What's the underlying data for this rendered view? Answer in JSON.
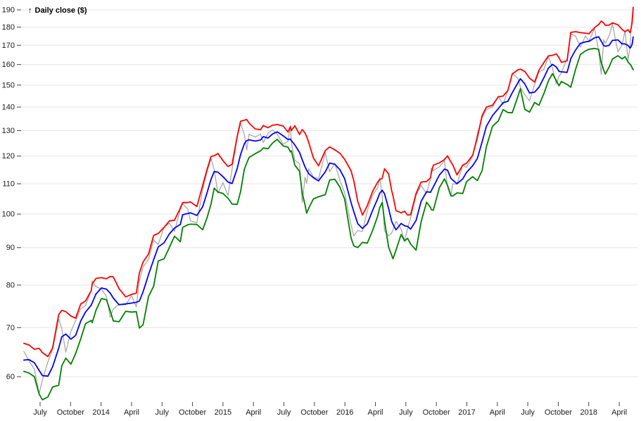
{
  "y_axis": {
    "arrow": "↑",
    "title": "Daily close ($)",
    "scale": "log",
    "ticks": [
      60,
      70,
      80,
      90,
      100,
      110,
      120,
      130,
      140,
      150,
      160,
      170,
      180,
      190
    ]
  },
  "x_axis": {
    "ticks": [
      {
        "t": 2,
        "label": "July"
      },
      {
        "t": 5,
        "label": "October"
      },
      {
        "t": 8,
        "label": "2014"
      },
      {
        "t": 11,
        "label": "April"
      },
      {
        "t": 14,
        "label": "July"
      },
      {
        "t": 17,
        "label": "October"
      },
      {
        "t": 20,
        "label": "2015"
      },
      {
        "t": 23,
        "label": "April"
      },
      {
        "t": 26,
        "label": "July"
      },
      {
        "t": 29,
        "label": "October"
      },
      {
        "t": 32,
        "label": "2016"
      },
      {
        "t": 35,
        "label": "April"
      },
      {
        "t": 38,
        "label": "July"
      },
      {
        "t": 41,
        "label": "October"
      },
      {
        "t": 44,
        "label": "2017"
      },
      {
        "t": 47,
        "label": "April"
      },
      {
        "t": 50,
        "label": "July"
      },
      {
        "t": 53,
        "label": "October"
      },
      {
        "t": 56,
        "label": "2018"
      },
      {
        "t": 59,
        "label": "April"
      }
    ]
  },
  "chart_data": {
    "type": "line",
    "title": "Daily close ($)",
    "y_scale": "log",
    "y_domain": [
      56,
      192
    ],
    "y_tick_labels": [
      60,
      70,
      80,
      90,
      100,
      110,
      120,
      130,
      140,
      150,
      160,
      170,
      180,
      190
    ],
    "x_unit": "months since 2013-05-01; tick t=2 is July 2013, t=59 is April 2018",
    "x_tick_labels": [
      "July",
      "October",
      "2014",
      "April",
      "July",
      "October",
      "2015",
      "April",
      "July",
      "October",
      "2016",
      "April",
      "July",
      "October",
      "2017",
      "April",
      "July",
      "October",
      "2018",
      "April"
    ],
    "grid": true,
    "legend": "none",
    "series": [
      {
        "name": "daily-close",
        "col": 1,
        "color": "#a3a3a3",
        "width": 1.2,
        "z": 0
      },
      {
        "name": "bollinger-lower",
        "col": 4,
        "color": "#008000",
        "width": 1.8,
        "z": 1
      },
      {
        "name": "bollinger-middle",
        "col": 2,
        "color": "#0000ff",
        "width": 1.8,
        "z": 2
      },
      {
        "name": "bollinger-upper",
        "col": 3,
        "color": "#ff0000",
        "width": 1.8,
        "z": 3
      }
    ],
    "points_format": "[t, close, middle, upper, lower]",
    "points": [
      [
        0.4,
        64.96,
        63.2,
        66.6,
        61.0
      ],
      [
        0.9,
        63.1,
        63.3,
        66.3,
        60.7
      ],
      [
        1.43,
        61.4,
        62.7,
        65.4,
        60.0
      ],
      [
        1.9,
        56.9,
        61.2,
        65.6,
        56.8
      ],
      [
        2.23,
        59.4,
        60.2,
        64.7,
        55.8
      ],
      [
        2.77,
        62.9,
        60.1,
        63.9,
        56.3
      ],
      [
        3.23,
        65.3,
        61.9,
        65.7,
        58.1
      ],
      [
        3.83,
        71.9,
        65.6,
        72.9,
        58.4
      ],
      [
        4.13,
        69.8,
        68.0,
        73.9,
        62.1
      ],
      [
        4.53,
        64.8,
        68.6,
        73.6,
        63.6
      ],
      [
        5.03,
        69.2,
        67.5,
        72.6,
        62.4
      ],
      [
        5.5,
        71.5,
        68.3,
        72.1,
        64.5
      ],
      [
        6.0,
        74.3,
        71.5,
        75.4,
        67.6
      ],
      [
        6.47,
        75.0,
        73.5,
        76.1,
        70.9
      ],
      [
        7.03,
        78.6,
        75.1,
        78.6,
        71.6
      ],
      [
        7.13,
        81.1,
        75.7,
        80.3,
        71.1
      ],
      [
        7.5,
        79.6,
        77.8,
        81.7,
        73.9
      ],
      [
        8.03,
        79.0,
        79.3,
        81.9,
        76.7
      ],
      [
        8.53,
        77.2,
        79.0,
        81.6,
        76.4
      ],
      [
        8.9,
        72.3,
        78.0,
        82.2,
        73.8
      ],
      [
        9.2,
        74.2,
        76.8,
        82.1,
        71.5
      ],
      [
        9.77,
        75.3,
        75.2,
        79.1,
        71.3
      ],
      [
        10.43,
        75.2,
        75.4,
        77.1,
        73.7
      ],
      [
        11.0,
        77.4,
        75.6,
        77.7,
        73.5
      ],
      [
        11.47,
        74.7,
        75.8,
        78.0,
        73.6
      ],
      [
        11.77,
        81.1,
        76.1,
        83.1,
        69.9
      ],
      [
        12.13,
        84.7,
        78.3,
        86.0,
        70.6
      ],
      [
        12.67,
        86.7,
        82.7,
        88.2,
        77.2
      ],
      [
        13.17,
        92.2,
        86.6,
        93.5,
        79.7
      ],
      [
        13.63,
        90.9,
        90.2,
        94.1,
        86.3
      ],
      [
        14.2,
        95.97,
        91.4,
        95.9,
        86.9
      ],
      [
        14.73,
        97.2,
        94.0,
        97.9,
        90.1
      ],
      [
        15.23,
        94.7,
        95.7,
        98.1,
        93.3
      ],
      [
        15.8,
        101.5,
        96.8,
        101.9,
        91.7
      ],
      [
        16.03,
        103.3,
        99.8,
        103.7,
        95.9
      ],
      [
        16.53,
        101.6,
        100.2,
        103.7,
        96.7
      ],
      [
        16.8,
        97.87,
        100.4,
        103.9,
        96.9
      ],
      [
        17.43,
        97.3,
        99.6,
        102.4,
        96.8
      ],
      [
        18.0,
        108.0,
        102.3,
        109.4,
        95.2
      ],
      [
        18.43,
        114.2,
        106.9,
        115.0,
        98.8
      ],
      [
        18.83,
        119.0,
        111.6,
        119.9,
        103.3
      ],
      [
        19.13,
        115.0,
        114.3,
        120.1,
        108.5
      ],
      [
        19.5,
        106.75,
        114.1,
        121.0,
        107.2
      ],
      [
        20.0,
        110.4,
        112.5,
        118.3,
        106.7
      ],
      [
        20.5,
        105.99,
        110.6,
        116.1,
        105.1
      ],
      [
        20.9,
        115.3,
        110.1,
        117.0,
        103.2
      ],
      [
        21.4,
        127.08,
        115.4,
        127.7,
        103.1
      ],
      [
        21.73,
        133.0,
        120.6,
        133.9,
        107.3
      ],
      [
        22.1,
        128.5,
        124.7,
        134.3,
        115.1
      ],
      [
        22.33,
        122.24,
        126.0,
        134.6,
        117.4
      ],
      [
        22.57,
        128.5,
        126.3,
        133.1,
        119.5
      ],
      [
        23.17,
        127.4,
        125.8,
        130.7,
        120.9
      ],
      [
        23.7,
        128.6,
        126.2,
        130.4,
        122.0
      ],
      [
        23.97,
        125.15,
        127.6,
        132.1,
        123.1
      ],
      [
        24.43,
        128.95,
        127.0,
        131.2,
        122.8
      ],
      [
        24.87,
        130.28,
        128.6,
        132.2,
        125.0
      ],
      [
        25.33,
        128.6,
        129.5,
        132.5,
        126.5
      ],
      [
        25.93,
        124.5,
        127.9,
        131.9,
        123.9
      ],
      [
        26.4,
        125.7,
        126.4,
        129.4,
        123.4
      ],
      [
        26.63,
        132.07,
        126.6,
        131.6,
        121.6
      ],
      [
        26.73,
        125.2,
        126.0,
        130.0,
        122.0
      ],
      [
        27.07,
        118.4,
        124.3,
        132.0,
        116.6
      ],
      [
        27.53,
        117.2,
        121.4,
        128.4,
        114.4
      ],
      [
        27.8,
        103.7,
        118.6,
        130.4,
        106.8
      ],
      [
        28.07,
        112.3,
        116.0,
        129.0,
        103.0
      ],
      [
        28.23,
        110.15,
        114.8,
        127.6,
        100.3
      ],
      [
        28.43,
        115.3,
        113.6,
        125.4,
        101.8
      ],
      [
        28.9,
        112.4,
        112.1,
        119.3,
        104.9
      ],
      [
        29.4,
        111.8,
        111.0,
        116.4,
        105.6
      ],
      [
        30.07,
        121.2,
        114.2,
        122.1,
        106.3
      ],
      [
        30.5,
        114.2,
        117.4,
        123.5,
        111.3
      ],
      [
        31.0,
        117.3,
        117.0,
        122.4,
        111.6
      ],
      [
        31.5,
        111.3,
        115.0,
        121.1,
        108.9
      ],
      [
        31.97,
        107.0,
        111.8,
        118.8,
        104.8
      ],
      [
        32.6,
        96.66,
        103.7,
        114.6,
        92.8
      ],
      [
        32.87,
        93.42,
        100.8,
        111.1,
        90.5
      ],
      [
        33.27,
        94.99,
        97.0,
        104.0,
        90.0
      ],
      [
        33.73,
        94.69,
        95.6,
        99.7,
        91.5
      ],
      [
        34.2,
        101.03,
        97.0,
        102.7,
        91.3
      ],
      [
        34.73,
        106.13,
        101.2,
        107.4,
        95.0
      ],
      [
        35.23,
        108.66,
        105.0,
        110.6,
        99.4
      ],
      [
        35.43,
        112.1,
        106.8,
        111.5,
        102.1
      ],
      [
        35.67,
        105.97,
        107.8,
        111.9,
        103.7
      ],
      [
        35.9,
        94.83,
        106.6,
        115.3,
        97.9
      ],
      [
        36.3,
        93.42,
        101.8,
        113.5,
        90.1
      ],
      [
        36.6,
        94.2,
        97.8,
        107.7,
        87.9
      ],
      [
        36.73,
        95.22,
        96.9,
        106.0,
        86.9
      ],
      [
        37.03,
        97.72,
        95.2,
        101.1,
        89.3
      ],
      [
        37.53,
        95.33,
        97.1,
        100.4,
        93.8
      ],
      [
        37.87,
        92.04,
        96.4,
        100.9,
        91.9
      ],
      [
        38.17,
        95.6,
        96.2,
        99.7,
        92.7
      ],
      [
        38.47,
        98.78,
        95.4,
        99.8,
        91.0
      ],
      [
        39.0,
        106.05,
        98.0,
        106.7,
        89.3
      ],
      [
        39.5,
        109.38,
        104.1,
        110.6,
        97.6
      ],
      [
        40.03,
        106.73,
        107.3,
        110.8,
        103.8
      ],
      [
        40.43,
        111.77,
        107.1,
        112.1,
        102.1
      ],
      [
        40.5,
        115.57,
        107.6,
        113.7,
        101.4
      ],
      [
        40.7,
        114.62,
        108.9,
        116.6,
        101.2
      ],
      [
        41.3,
        116.05,
        113.1,
        117.5,
        108.7
      ],
      [
        41.8,
        118.25,
        115.2,
        118.7,
        111.7
      ],
      [
        42.1,
        108.84,
        114.8,
        120.1,
        109.5
      ],
      [
        42.43,
        105.71,
        111.9,
        117.8,
        106.0
      ],
      [
        42.6,
        109.99,
        111.3,
        116.8,
        105.8
      ],
      [
        43.03,
        109.9,
        110.0,
        113.1,
        106.9
      ],
      [
        43.6,
        116.64,
        111.7,
        116.7,
        106.7
      ],
      [
        43.97,
        115.82,
        114.0,
        117.3,
        110.7
      ],
      [
        44.57,
        120.0,
        116.4,
        120.3,
        112.5
      ],
      [
        45.03,
        128.75,
        119.1,
        127.1,
        111.1
      ],
      [
        45.5,
        135.35,
        125.4,
        136.2,
        114.6
      ],
      [
        45.93,
        138.96,
        131.8,
        140.0,
        123.6
      ],
      [
        46.53,
        139.99,
        136.3,
        140.8,
        131.8
      ],
      [
        47.1,
        144.77,
        139.3,
        144.6,
        134.0
      ],
      [
        47.57,
        141.2,
        141.9,
        144.9,
        138.9
      ],
      [
        48.03,
        147.51,
        142.5,
        147.4,
        137.6
      ],
      [
        48.47,
        155.7,
        146.4,
        155.3,
        137.5
      ],
      [
        49.03,
        153.18,
        151.1,
        157.4,
        144.8
      ],
      [
        49.27,
        148.98,
        153.0,
        157.7,
        148.3
      ],
      [
        49.7,
        145.63,
        150.6,
        156.6,
        139.0
      ],
      [
        50.17,
        142.73,
        146.3,
        153.3,
        137.8
      ],
      [
        50.67,
        150.27,
        146.7,
        151.4,
        142.0
      ],
      [
        51.1,
        156.39,
        149.0,
        157.2,
        140.8
      ],
      [
        51.57,
        157.5,
        153.4,
        160.9,
        145.9
      ],
      [
        52.03,
        164.05,
        158.2,
        164.4,
        152.0
      ],
      [
        52.43,
        158.28,
        160.1,
        164.7,
        155.5
      ],
      [
        52.8,
        150.55,
        158.8,
        165.5,
        152.1
      ],
      [
        53.07,
        154.2,
        156.6,
        163.5,
        149.7
      ],
      [
        53.3,
        155.84,
        156.4,
        161.1,
        151.7
      ],
      [
        53.87,
        163.05,
        156.1,
        161.9,
        150.3
      ],
      [
        54.23,
        176.24,
        163.0,
        177.0,
        149.0
      ],
      [
        54.7,
        174.96,
        167.5,
        177.4,
        157.6
      ],
      [
        55.17,
        169.01,
        171.0,
        176.9,
        165.1
      ],
      [
        55.67,
        175.01,
        171.8,
        176.6,
        167.0
      ],
      [
        56.03,
        172.26,
        172.1,
        176.3,
        167.9
      ],
      [
        56.57,
        179.26,
        174.0,
        179.7,
        168.3
      ],
      [
        56.97,
        166.97,
        174.6,
        181.4,
        167.8
      ],
      [
        57.23,
        155.15,
        172.2,
        183.4,
        161.0
      ],
      [
        57.47,
        172.99,
        169.8,
        182.3,
        157.3
      ],
      [
        57.63,
        171.07,
        169.5,
        181.0,
        155.3
      ],
      [
        58.0,
        175.0,
        169.9,
        181.1,
        158.7
      ],
      [
        58.33,
        181.72,
        172.6,
        182.4,
        162.8
      ],
      [
        58.87,
        166.48,
        172.9,
        181.3,
        164.5
      ],
      [
        59.27,
        170.05,
        170.8,
        178.7,
        162.9
      ],
      [
        59.57,
        177.84,
        170.7,
        177.4,
        164.0
      ],
      [
        59.87,
        162.32,
        169.9,
        178.5,
        161.3
      ],
      [
        60.07,
        169.1,
        168.5,
        176.9,
        160.1
      ],
      [
        60.13,
        176.57,
        168.9,
        178.0,
        159.8
      ],
      [
        60.27,
        186.05,
        170.5,
        182.6,
        158.4
      ],
      [
        60.37,
        188.59,
        174.5,
        191.5,
        157.4
      ]
    ]
  }
}
